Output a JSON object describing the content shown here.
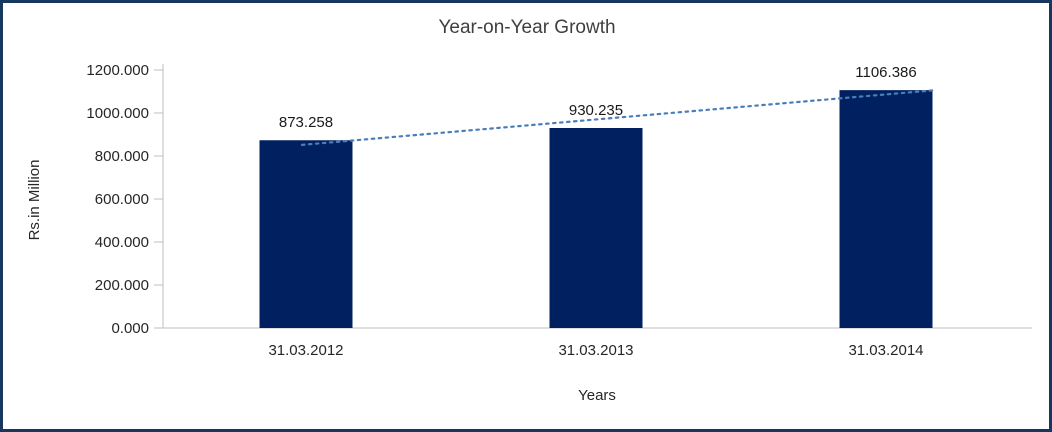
{
  "chart_data": {
    "type": "bar",
    "title": "Year-on-Year Growth",
    "xlabel": "Years",
    "ylabel": "Rs.in Million",
    "categories": [
      "31.03.2012",
      "31.03.2013",
      "31.03.2014"
    ],
    "values": [
      873.258,
      930.235,
      1106.386
    ],
    "data_labels": [
      "873.258",
      "930.235",
      "1106.386"
    ],
    "ylim": [
      0,
      1200
    ],
    "ytick_step": 200,
    "ytick_labels": [
      "0.000",
      "200.000",
      "400.000",
      "600.000",
      "800.000",
      "1000.000",
      "1200.000"
    ],
    "grid": false,
    "legend": "none",
    "bar_color": "#002060",
    "frame_border_color": "#17375e",
    "trendline": {
      "kind": "linear",
      "style": "dotted",
      "color": "#4a7ebb"
    }
  }
}
